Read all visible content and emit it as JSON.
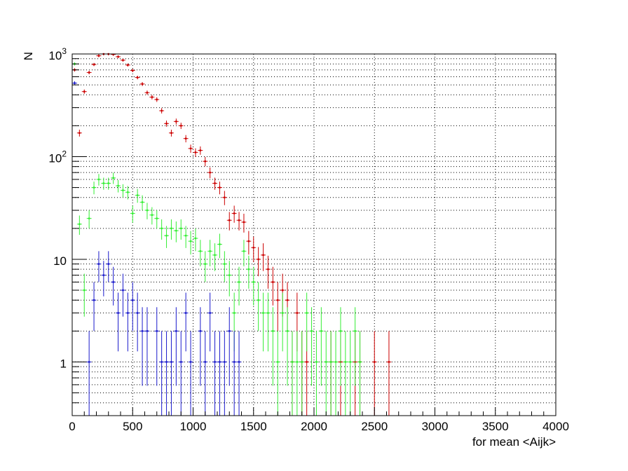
{
  "chart_data": {
    "type": "scatter",
    "title": "",
    "xlabel": "for mean <Aijk>",
    "ylabel": "N",
    "xlim": [
      0,
      4000
    ],
    "ylim": [
      0.3,
      1000
    ],
    "yscale": "log",
    "grid": true,
    "legend": "none",
    "x_ticks": [
      "0",
      "500",
      "1000",
      "1500",
      "2000",
      "2500",
      "3000",
      "3500",
      "4000"
    ],
    "y_ticks": [
      {
        "value": 1000,
        "base": "10",
        "exp": "3"
      },
      {
        "value": 100,
        "base": "10",
        "exp": "2"
      },
      {
        "value": 10,
        "base": "10",
        "exp": ""
      },
      {
        "value": 1,
        "base": "1",
        "exp": ""
      }
    ],
    "bin_width": 40,
    "series": [
      {
        "color": "#cc0000",
        "x": [
          20,
          60,
          100,
          140,
          180,
          220,
          260,
          300,
          340,
          380,
          420,
          460,
          500,
          540,
          580,
          620,
          660,
          700,
          740,
          780,
          820,
          860,
          900,
          940,
          980,
          1020,
          1060,
          1100,
          1140,
          1180,
          1220,
          1260,
          1300,
          1340,
          1380,
          1420,
          1460,
          1500,
          1540,
          1580,
          1620,
          1660,
          1700,
          1740,
          1780,
          1820,
          1860,
          1900,
          1940,
          1980,
          2020,
          2060,
          2100,
          2140,
          2180,
          2220,
          2260,
          2300,
          2340,
          2380,
          2420,
          2460,
          2500,
          2540,
          2580,
          2620
        ],
        "y": [
          700,
          170,
          430,
          660,
          790,
          960,
          1000,
          1000,
          990,
          940,
          870,
          780,
          690,
          590,
          510,
          420,
          380,
          360,
          280,
          210,
          170,
          220,
          200,
          150,
          120,
          110,
          115,
          90,
          70,
          55,
          50,
          40,
          24,
          28,
          24,
          23,
          15,
          13,
          10,
          11,
          8,
          6,
          4,
          5,
          4,
          1,
          3,
          1,
          1,
          0,
          0,
          0,
          0,
          1,
          0,
          1,
          0,
          0,
          1,
          1,
          0,
          0,
          1,
          0,
          0,
          1
        ]
      },
      {
        "color": "#33ee33",
        "x": [
          20,
          60,
          100,
          140,
          180,
          220,
          260,
          300,
          340,
          380,
          420,
          460,
          500,
          540,
          580,
          620,
          660,
          700,
          740,
          780,
          820,
          860,
          900,
          940,
          980,
          1020,
          1060,
          1100,
          1140,
          1180,
          1220,
          1260,
          1300,
          1340,
          1380,
          1420,
          1460,
          1500,
          1540,
          1580,
          1620,
          1660,
          1700,
          1740,
          1780,
          1820,
          1860,
          1900,
          1940,
          1980,
          2020,
          2060,
          2100,
          2140,
          2180,
          2220,
          2260,
          2300,
          2340,
          2380
        ],
        "y": [
          800,
          22,
          5,
          25,
          50,
          60,
          55,
          55,
          62,
          52,
          47,
          45,
          28,
          42,
          36,
          30,
          27,
          25,
          20,
          17,
          20,
          19,
          20,
          17,
          15,
          16,
          12,
          9,
          12,
          11,
          14,
          9,
          7,
          3,
          6,
          12,
          8,
          6,
          4,
          3,
          3,
          2,
          1,
          3,
          2,
          1,
          1,
          1,
          3,
          2,
          1,
          2,
          1,
          1,
          1,
          2,
          1,
          1,
          2,
          1
        ]
      },
      {
        "color": "#1a1acc",
        "x": [
          20,
          60,
          100,
          140,
          180,
          220,
          260,
          300,
          340,
          380,
          420,
          460,
          500,
          540,
          580,
          620,
          660,
          700,
          740,
          780,
          820,
          860,
          900,
          940,
          980,
          1020,
          1060,
          1100,
          1140,
          1180,
          1220,
          1260,
          1300,
          1340,
          1380
        ],
        "y": [
          520,
          0,
          0,
          1,
          4,
          9,
          7,
          9,
          6,
          3,
          5,
          3,
          4,
          3,
          2,
          2,
          0,
          2,
          1,
          1,
          1,
          2,
          1,
          3,
          1,
          0,
          2,
          1,
          3,
          1,
          1,
          1,
          2,
          1,
          1
        ]
      }
    ]
  }
}
